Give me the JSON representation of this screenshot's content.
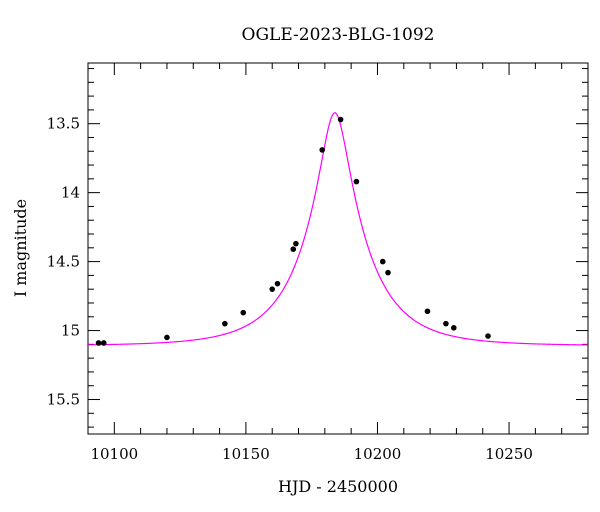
{
  "chart_data": {
    "type": "scatter",
    "title": "OGLE-2023-BLG-1092",
    "xlabel": "HJD - 2450000",
    "ylabel": "I magnitude",
    "xlim": [
      10090,
      10280
    ],
    "ylim": [
      15.75,
      13.06
    ],
    "y_inverted": true,
    "grid": false,
    "x_major_ticks": [
      10100,
      10150,
      10200,
      10250
    ],
    "x_tick_labels": [
      "10100",
      "10150",
      "10200",
      "10250"
    ],
    "y_major_ticks": [
      13.5,
      14,
      14.5,
      15,
      15.5
    ],
    "y_tick_labels": [
      "13.5",
      "14",
      "14.5",
      "15",
      "15.5"
    ],
    "series": [
      {
        "kind": "points",
        "color": "#000000",
        "x": [
          10094,
          10096,
          10120,
          10142,
          10149,
          10160,
          10162,
          10168,
          10169,
          10179,
          10186,
          10192,
          10202,
          10204,
          10219,
          10226,
          10229,
          10242
        ],
        "y": [
          15.09,
          15.09,
          15.05,
          14.95,
          14.87,
          14.7,
          14.66,
          14.41,
          14.37,
          13.69,
          13.47,
          13.92,
          14.5,
          14.58,
          14.86,
          14.95,
          14.98,
          15.04
        ]
      },
      {
        "kind": "model-curve",
        "color": "#ff00ff",
        "peak_x": 10183.8,
        "peak_mag": 13.42,
        "baseline_mag": 15.11,
        "samples_x": [
          10090,
          10110,
          10130,
          10150,
          10160,
          10170,
          10176,
          10180,
          10183.8,
          10188,
          10192,
          10200,
          10210,
          10220,
          10240,
          10260,
          10280
        ],
        "samples_y": [
          15.09,
          15.07,
          15.02,
          14.86,
          14.7,
          14.33,
          13.96,
          13.63,
          13.42,
          13.62,
          13.92,
          14.4,
          14.71,
          14.88,
          15.02,
          15.07,
          15.09
        ]
      }
    ]
  }
}
